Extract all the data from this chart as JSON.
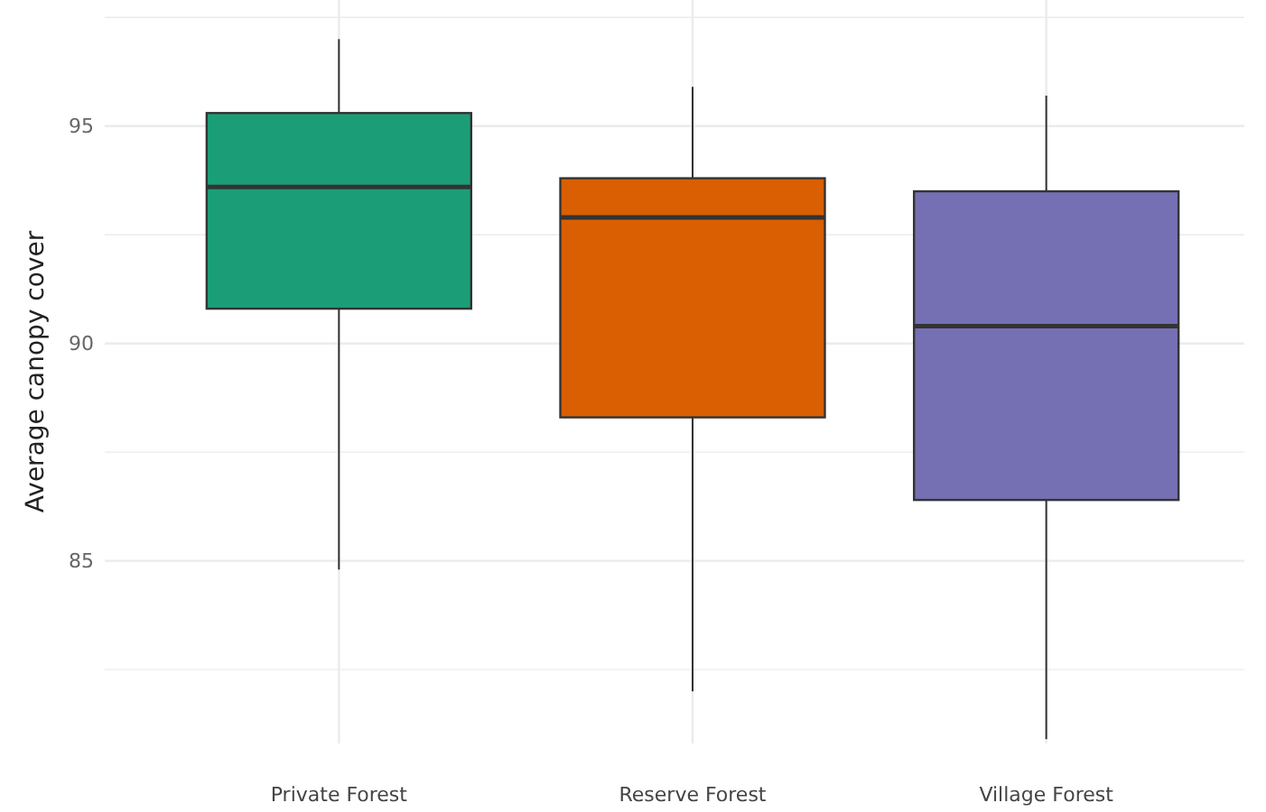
{
  "chart_data": {
    "type": "box",
    "ylabel": "Average canopy cover",
    "categories": [
      "Private Forest",
      "Reserve Forest",
      "Village Forest"
    ],
    "colors": [
      "#1b9e77",
      "#d95f02",
      "#7570b3"
    ],
    "boxes": [
      {
        "low": 84.8,
        "q1": 90.8,
        "median": 93.6,
        "q3": 95.3,
        "high": 97.0
      },
      {
        "low": 82.0,
        "q1": 88.3,
        "median": 92.9,
        "q3": 93.8,
        "high": 95.9
      },
      {
        "low": 80.9,
        "q1": 86.4,
        "median": 90.4,
        "q3": 93.5,
        "high": 95.7
      }
    ],
    "ylim": [
      80.8,
      97.9
    ],
    "yticks": [
      {
        "value": 82.5,
        "label": null
      },
      85,
      {
        "value": 87.5,
        "label": null
      },
      90,
      {
        "value": 92.5,
        "label": null
      },
      95,
      {
        "value": 97.5,
        "label": null
      }
    ],
    "grid": true
  }
}
